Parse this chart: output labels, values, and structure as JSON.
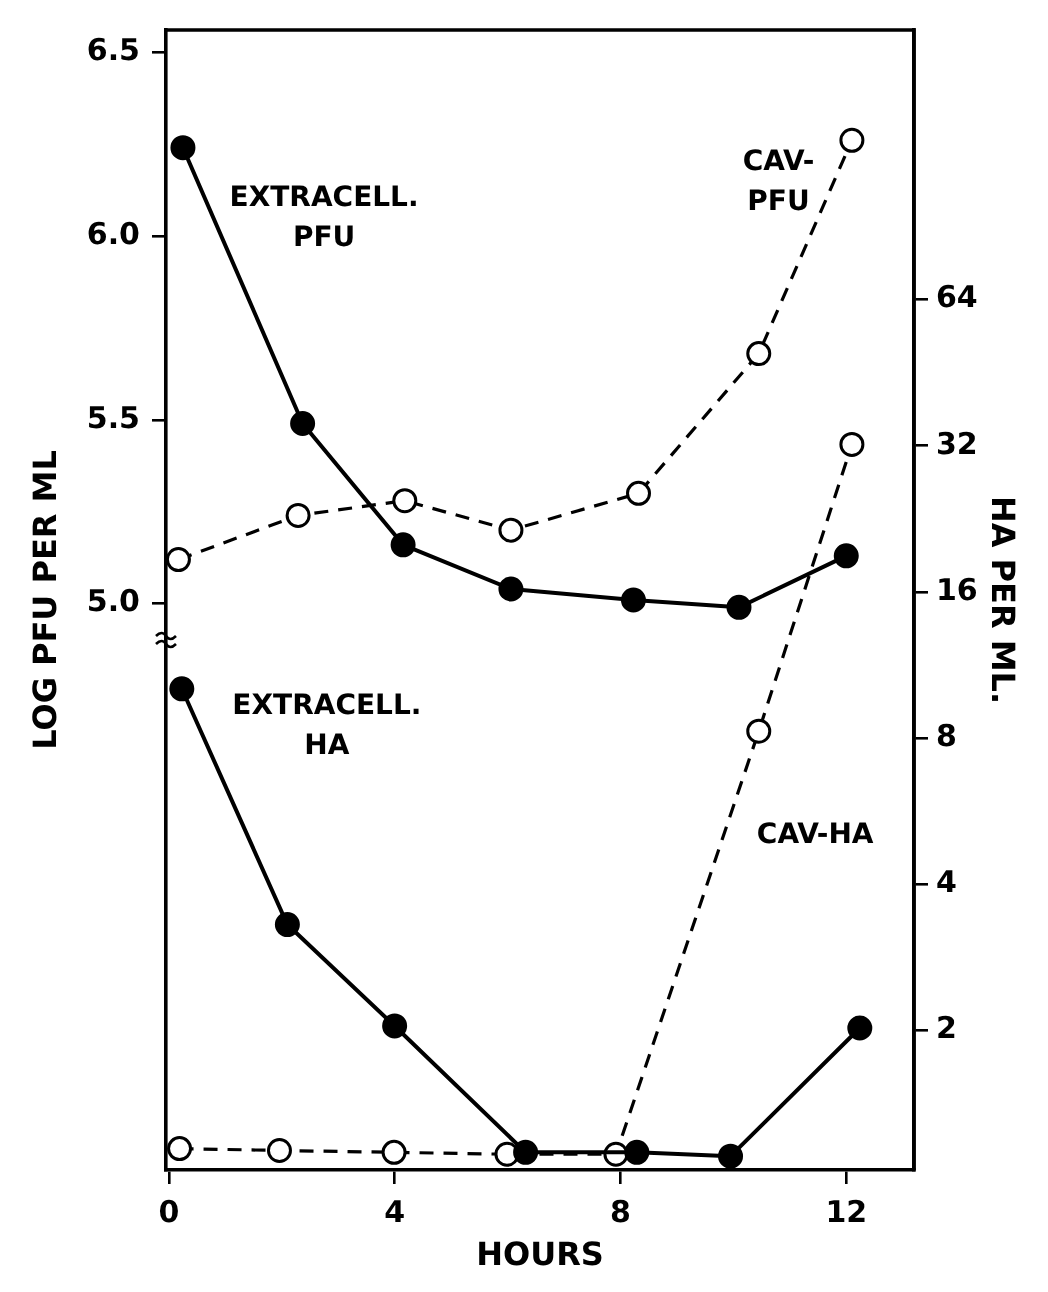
{
  "chart_data": {
    "type": "line",
    "xlabel": "HOURS",
    "ylabel": "LOG PFU PER ML",
    "y2label": "HA PER ML.",
    "xlim": [
      -0.05,
      13.2
    ],
    "xticks": [
      0,
      4,
      8,
      12
    ],
    "ylim": [
      3.46,
      6.56
    ],
    "yticks": [
      {
        "value": 5,
        "label": "5.0"
      },
      {
        "value": 5.5,
        "label": "5.5"
      },
      {
        "value": 6,
        "label": "6.0"
      },
      {
        "value": 6.5,
        "label": "6.5"
      }
    ],
    "y2lim": [
      1.03,
      230
    ],
    "y2ticks": [
      2,
      4,
      8,
      16,
      32,
      64
    ],
    "log": "y2",
    "marker": "circle",
    "legend": false,
    "grid": false,
    "series": [
      {
        "name": "EXTRACELL. PFU",
        "color": "#000000",
        "line_style": "solid",
        "x": [
          0.25,
          2.37,
          4.15,
          6.06,
          8.23,
          10.1,
          12.0
        ],
        "values": [
          6.24,
          5.49,
          5.16,
          5.04,
          5.01,
          4.99,
          5.13
        ]
      },
      {
        "name": "CAV-PFU",
        "color": "#000000",
        "line_style": "dashed",
        "x": [
          0.17,
          2.29,
          4.18,
          6.06,
          8.32,
          10.45,
          12.1
        ],
        "values": [
          5.12,
          5.24,
          5.28,
          5.2,
          5.3,
          5.68,
          6.26
        ]
      },
      {
        "name": "EXTRACELL. HA",
        "color": "#000000",
        "line_style": "solid",
        "axis": "y2",
        "x": [
          0.23,
          2.1,
          4.0,
          6.32,
          8.29,
          9.95,
          12.24
        ],
        "values": [
          10.1,
          3.3,
          2.04,
          1.12,
          1.12,
          1.1,
          2.02
        ]
      },
      {
        "name": "CAV-HA",
        "color": "#000000",
        "line_style": "dashed",
        "axis": "y2",
        "x": [
          0.19,
          1.96,
          3.99,
          5.99,
          7.92,
          10.45,
          12.1
        ],
        "values": [
          1.14,
          1.13,
          1.12,
          1.11,
          1.11,
          8.26,
          32.2
        ]
      }
    ]
  }
}
